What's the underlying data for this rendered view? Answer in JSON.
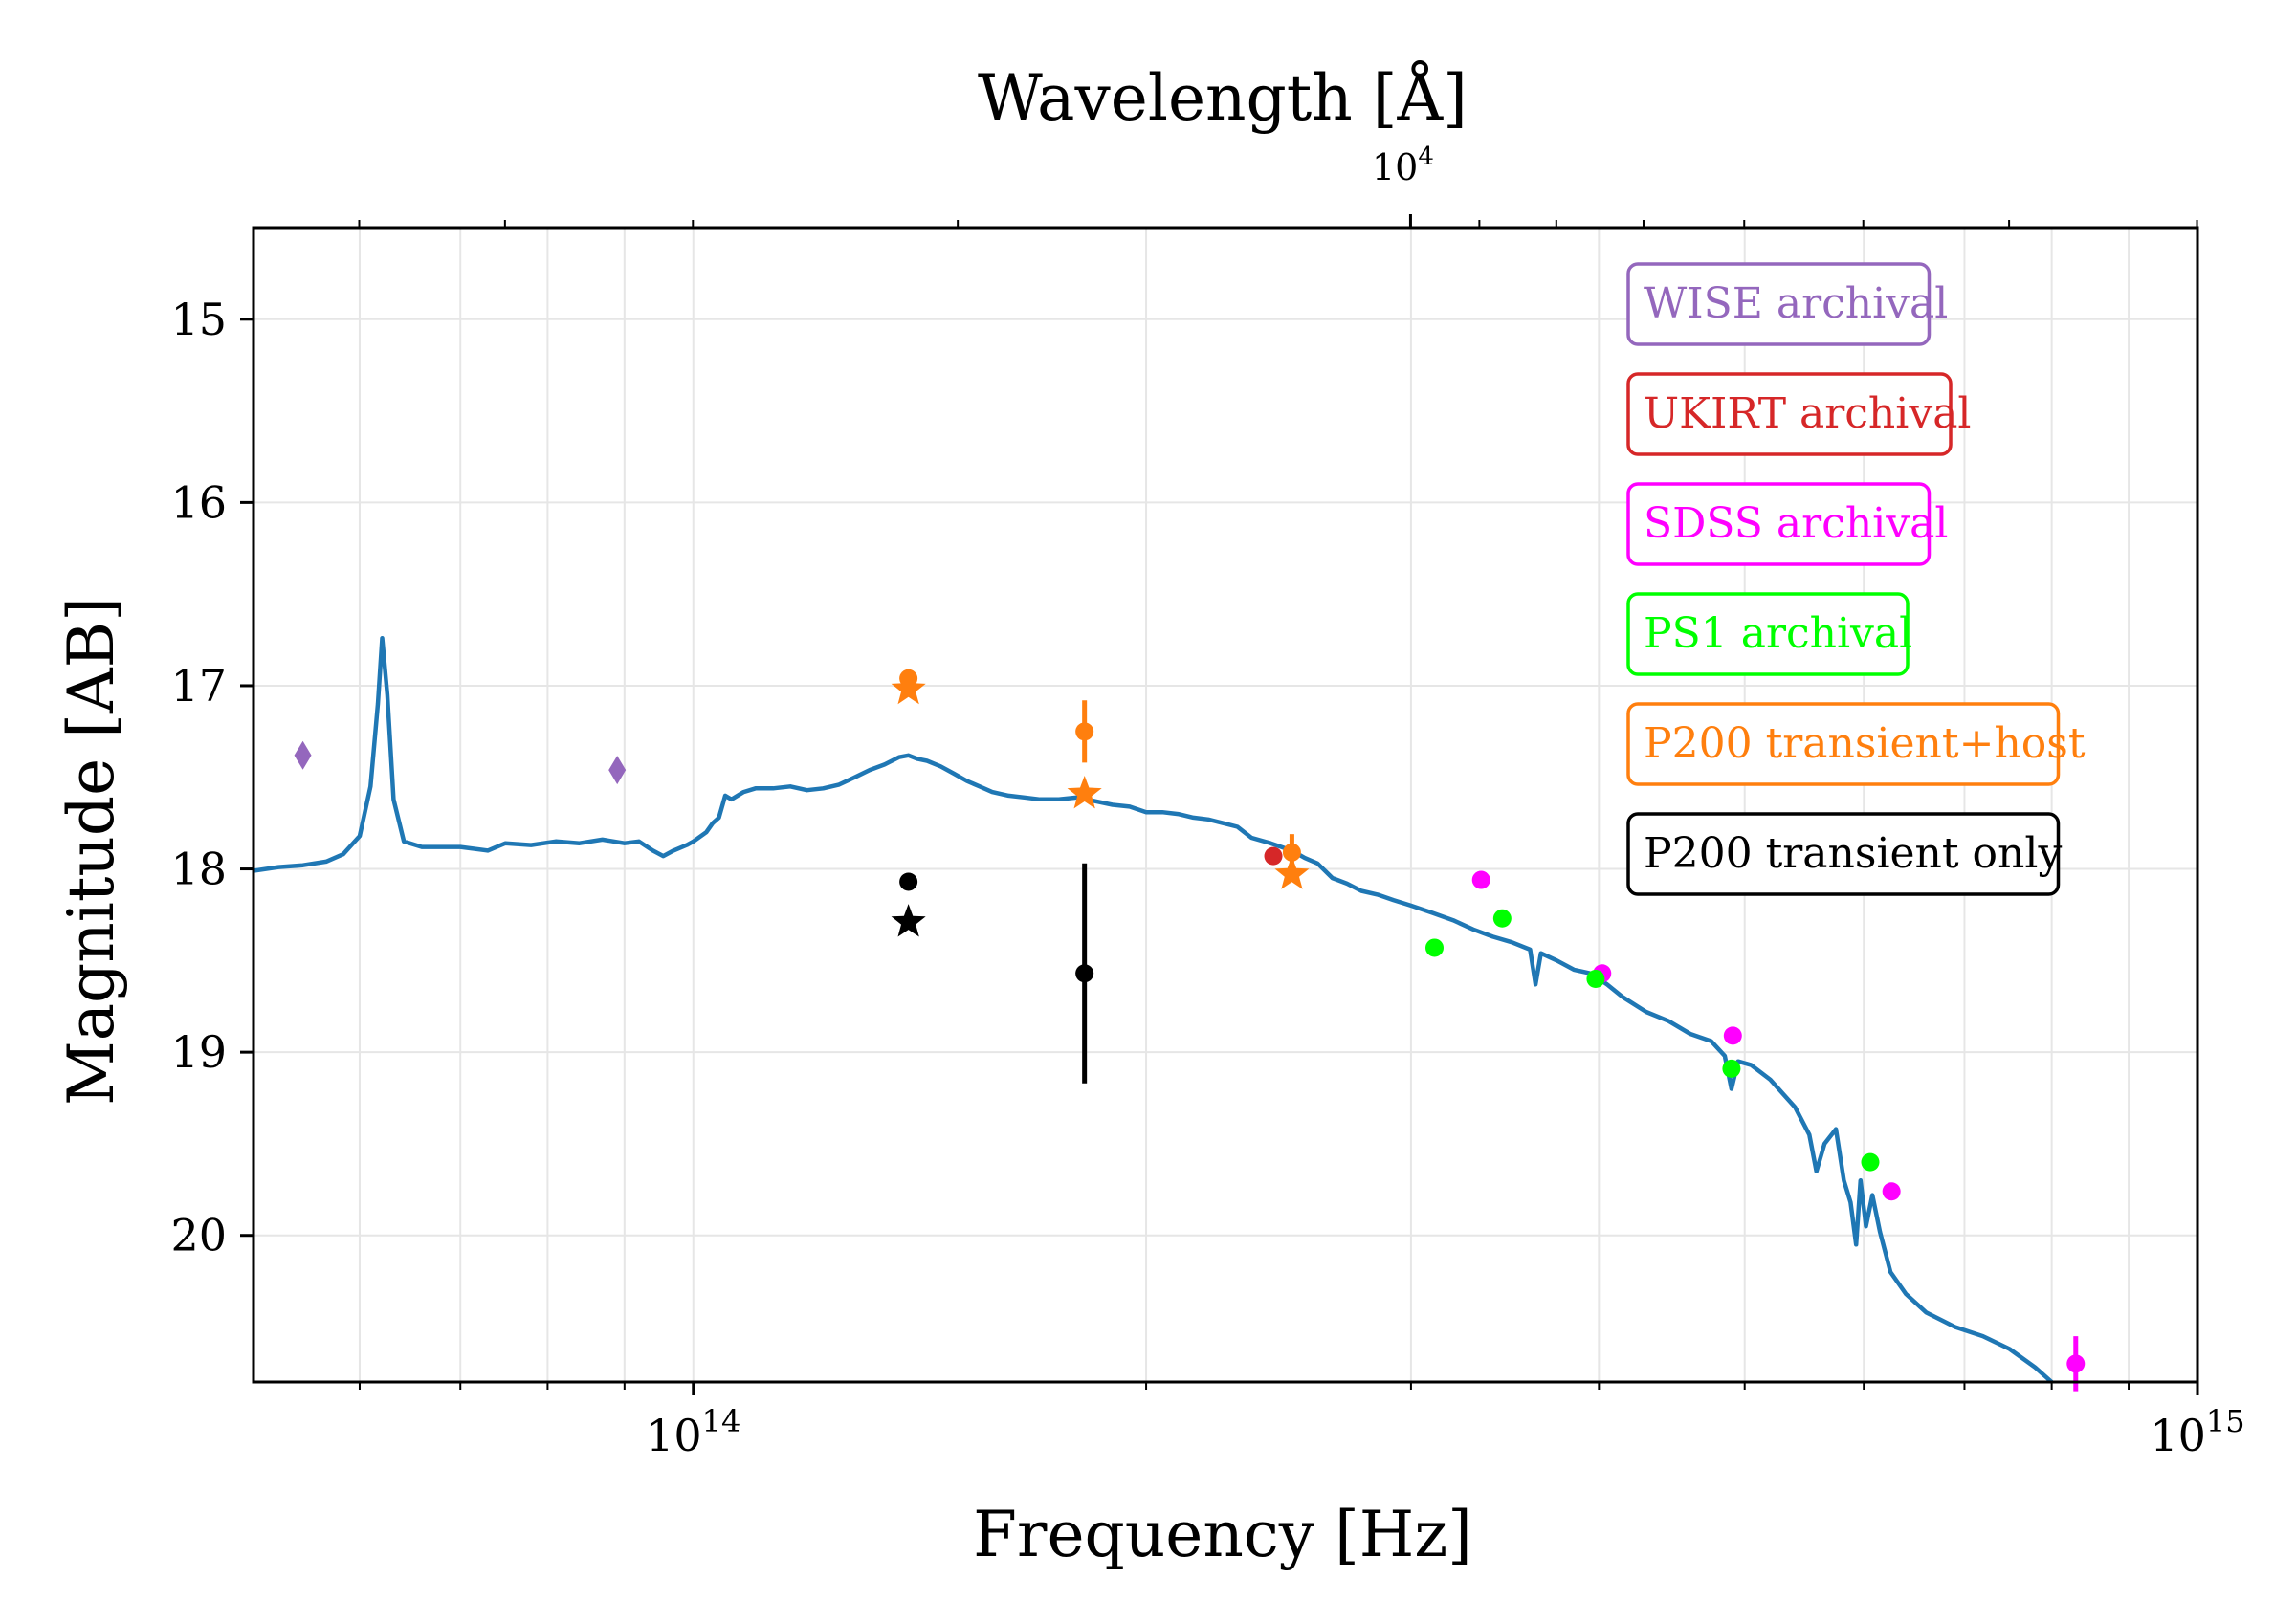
{
  "chart_data": {
    "type": "scatter",
    "xlabel": "Frequency [Hz]",
    "ylabel": "Magnitude [AB]",
    "x2label": "Wavelength [Å]",
    "xscale": "log",
    "xlim": [
      51000000000000.0,
      1000000000000000.0
    ],
    "ylim": [
      20.8,
      14.5
    ],
    "y_inverted": true,
    "grid": true,
    "x_ticks": [
      {
        "value": 100000000000000.0,
        "base": "10",
        "exp": "14"
      },
      {
        "value": 1000000000000000.0,
        "base": "10",
        "exp": "15"
      }
    ],
    "x2_ticks": [
      {
        "value_angstrom": 10000,
        "base": "10",
        "exp": "4"
      }
    ],
    "y_ticks": [
      "15",
      "16",
      "17",
      "18",
      "19",
      "20"
    ],
    "legend_placement": "top-right",
    "series": [
      {
        "name": "WISE archival",
        "color": "#9467bd",
        "marker": "diamond",
        "points": [
          {
            "x": 55000000000000.0,
            "y": 17.38
          },
          {
            "x": 89000000000000.0,
            "y": 17.46
          }
        ]
      },
      {
        "name": "UKIRT archival",
        "color": "#d62728",
        "marker": "circle",
        "points": [
          {
            "x": 243000000000000.0,
            "y": 17.93
          }
        ]
      },
      {
        "name": "SDSS archival",
        "color": "#ff00ff",
        "marker": "circle",
        "points": [
          {
            "x": 334000000000000.0,
            "y": 18.06
          },
          {
            "x": 402000000000000.0,
            "y": 18.57
          },
          {
            "x": 491000000000000.0,
            "y": 18.91
          },
          {
            "x": 626000000000000.0,
            "y": 19.76
          },
          {
            "x": 830000000000000.0,
            "y": 20.7,
            "yerr": 0.15
          }
        ]
      },
      {
        "name": "PS1 archival",
        "color": "#00ff00",
        "marker": "circle",
        "points": [
          {
            "x": 311000000000000.0,
            "y": 18.43
          },
          {
            "x": 345000000000000.0,
            "y": 18.27
          },
          {
            "x": 398000000000000.0,
            "y": 18.6
          },
          {
            "x": 490000000000000.0,
            "y": 19.09
          },
          {
            "x": 606000000000000.0,
            "y": 19.6
          }
        ]
      },
      {
        "name": "P200 transient+host",
        "color": "#ff7f0e",
        "marker": "circle",
        "points": [
          {
            "x": 139000000000000.0,
            "y": 16.96
          },
          {
            "x": 182000000000000.0,
            "y": 17.25,
            "yerr": 0.17
          },
          {
            "x": 250000000000000.0,
            "y": 17.91,
            "yerr": 0.1
          }
        ]
      },
      {
        "name": "",
        "color": "#ff7f0e",
        "marker": "star",
        "points": [
          {
            "x": 139000000000000.0,
            "y": 17.02
          },
          {
            "x": 182000000000000.0,
            "y": 17.59
          },
          {
            "x": 250000000000000.0,
            "y": 18.03
          }
        ]
      },
      {
        "name": "P200 transient only",
        "color": "#000000",
        "marker": "circle",
        "points": [
          {
            "x": 139000000000000.0,
            "y": 18.07
          },
          {
            "x": 182000000000000.0,
            "y": 18.57,
            "yerr": 0.6
          }
        ]
      },
      {
        "name": "",
        "color": "#000000",
        "marker": "star",
        "points": [
          {
            "x": 139000000000000.0,
            "y": 18.29
          }
        ]
      },
      {
        "name": "",
        "type": "line",
        "color": "#1f77b4",
        "points": [
          {
            "x": 51000000000000.0,
            "y": 18.01
          },
          {
            "x": 53000000000000.0,
            "y": 17.99
          },
          {
            "x": 55000000000000.0,
            "y": 17.98
          },
          {
            "x": 57000000000000.0,
            "y": 17.96
          },
          {
            "x": 58500000000000.0,
            "y": 17.92
          },
          {
            "x": 60000000000000.0,
            "y": 17.82
          },
          {
            "x": 61000000000000.0,
            "y": 17.55
          },
          {
            "x": 61700000000000.0,
            "y": 17.1
          },
          {
            "x": 62100000000000.0,
            "y": 16.74
          },
          {
            "x": 62600000000000.0,
            "y": 17.05
          },
          {
            "x": 63200000000000.0,
            "y": 17.62
          },
          {
            "x": 64200000000000.0,
            "y": 17.85
          },
          {
            "x": 66000000000000.0,
            "y": 17.88
          },
          {
            "x": 70000000000000.0,
            "y": 17.88
          },
          {
            "x": 73000000000000.0,
            "y": 17.9
          },
          {
            "x": 75000000000000.0,
            "y": 17.86
          },
          {
            "x": 78000000000000.0,
            "y": 17.87
          },
          {
            "x": 81000000000000.0,
            "y": 17.85
          },
          {
            "x": 84000000000000.0,
            "y": 17.86
          },
          {
            "x": 87000000000000.0,
            "y": 17.84
          },
          {
            "x": 90000000000000.0,
            "y": 17.86
          },
          {
            "x": 92000000000000.0,
            "y": 17.85
          },
          {
            "x": 94000000000000.0,
            "y": 17.9
          },
          {
            "x": 95500000000000.0,
            "y": 17.93
          },
          {
            "x": 97000000000000.0,
            "y": 17.9
          },
          {
            "x": 99000000000000.0,
            "y": 17.87
          },
          {
            "x": 100000000000000.0,
            "y": 17.85
          },
          {
            "x": 102000000000000.0,
            "y": 17.8
          },
          {
            "x": 103000000000000.0,
            "y": 17.75
          },
          {
            "x": 104000000000000.0,
            "y": 17.72
          },
          {
            "x": 105000000000000.0,
            "y": 17.6
          },
          {
            "x": 106000000000000.0,
            "y": 17.62
          },
          {
            "x": 108000000000000.0,
            "y": 17.58
          },
          {
            "x": 110000000000000.0,
            "y": 17.56
          },
          {
            "x": 113000000000000.0,
            "y": 17.56
          },
          {
            "x": 116000000000000.0,
            "y": 17.55
          },
          {
            "x": 119000000000000.0,
            "y": 17.57
          },
          {
            "x": 122000000000000.0,
            "y": 17.56
          },
          {
            "x": 125000000000000.0,
            "y": 17.54
          },
          {
            "x": 128000000000000.0,
            "y": 17.5
          },
          {
            "x": 131000000000000.0,
            "y": 17.46
          },
          {
            "x": 134000000000000.0,
            "y": 17.43
          },
          {
            "x": 137000000000000.0,
            "y": 17.39
          },
          {
            "x": 139000000000000.0,
            "y": 17.38
          },
          {
            "x": 141000000000000.0,
            "y": 17.4
          },
          {
            "x": 143000000000000.0,
            "y": 17.41
          },
          {
            "x": 146000000000000.0,
            "y": 17.44
          },
          {
            "x": 149000000000000.0,
            "y": 17.48
          },
          {
            "x": 152000000000000.0,
            "y": 17.52
          },
          {
            "x": 155000000000000.0,
            "y": 17.55
          },
          {
            "x": 158000000000000.0,
            "y": 17.58
          },
          {
            "x": 162000000000000.0,
            "y": 17.6
          },
          {
            "x": 166000000000000.0,
            "y": 17.61
          },
          {
            "x": 170000000000000.0,
            "y": 17.62
          },
          {
            "x": 175000000000000.0,
            "y": 17.62
          },
          {
            "x": 180000000000000.0,
            "y": 17.61
          },
          {
            "x": 185000000000000.0,
            "y": 17.63
          },
          {
            "x": 190000000000000.0,
            "y": 17.65
          },
          {
            "x": 195000000000000.0,
            "y": 17.66
          },
          {
            "x": 200000000000000.0,
            "y": 17.69
          },
          {
            "x": 205000000000000.0,
            "y": 17.69
          },
          {
            "x": 210000000000000.0,
            "y": 17.7
          },
          {
            "x": 215000000000000.0,
            "y": 17.72
          },
          {
            "x": 220000000000000.0,
            "y": 17.73
          },
          {
            "x": 225000000000000.0,
            "y": 17.75
          },
          {
            "x": 230000000000000.0,
            "y": 17.77
          },
          {
            "x": 235000000000000.0,
            "y": 17.83
          },
          {
            "x": 242000000000000.0,
            "y": 17.86
          },
          {
            "x": 250000000000000.0,
            "y": 17.9
          },
          {
            "x": 255000000000000.0,
            "y": 17.94
          },
          {
            "x": 260000000000000.0,
            "y": 17.97
          },
          {
            "x": 266000000000000.0,
            "y": 18.05
          },
          {
            "x": 272000000000000.0,
            "y": 18.08
          },
          {
            "x": 278000000000000.0,
            "y": 18.12
          },
          {
            "x": 285000000000000.0,
            "y": 18.14
          },
          {
            "x": 292000000000000.0,
            "y": 18.17
          },
          {
            "x": 300000000000000.0,
            "y": 18.2
          },
          {
            "x": 310000000000000.0,
            "y": 18.24
          },
          {
            "x": 320000000000000.0,
            "y": 18.28
          },
          {
            "x": 330000000000000.0,
            "y": 18.33
          },
          {
            "x": 340000000000000.0,
            "y": 18.37
          },
          {
            "x": 350000000000000.0,
            "y": 18.4
          },
          {
            "x": 360000000000000.0,
            "y": 18.44
          },
          {
            "x": 363000000000000.0,
            "y": 18.63
          },
          {
            "x": 366000000000000.0,
            "y": 18.46
          },
          {
            "x": 375000000000000.0,
            "y": 18.5
          },
          {
            "x": 385000000000000.0,
            "y": 18.55
          },
          {
            "x": 395000000000000.0,
            "y": 18.57
          },
          {
            "x": 405000000000000.0,
            "y": 18.63
          },
          {
            "x": 415000000000000.0,
            "y": 18.7
          },
          {
            "x": 430000000000000.0,
            "y": 18.78
          },
          {
            "x": 445000000000000.0,
            "y": 18.83
          },
          {
            "x": 460000000000000.0,
            "y": 18.9
          },
          {
            "x": 475000000000000.0,
            "y": 18.94
          },
          {
            "x": 485000000000000.0,
            "y": 19.02
          },
          {
            "x": 490000000000000.0,
            "y": 19.2
          },
          {
            "x": 495000000000000.0,
            "y": 19.05
          },
          {
            "x": 505000000000000.0,
            "y": 19.07
          },
          {
            "x": 520000000000000.0,
            "y": 19.15
          },
          {
            "x": 540000000000000.0,
            "y": 19.3
          },
          {
            "x": 552000000000000.0,
            "y": 19.45
          },
          {
            "x": 558000000000000.0,
            "y": 19.65
          },
          {
            "x": 565000000000000.0,
            "y": 19.5
          },
          {
            "x": 575000000000000.0,
            "y": 19.42
          },
          {
            "x": 582000000000000.0,
            "y": 19.7
          },
          {
            "x": 588000000000000.0,
            "y": 19.82
          },
          {
            "x": 593000000000000.0,
            "y": 20.05
          },
          {
            "x": 597000000000000.0,
            "y": 19.7
          },
          {
            "x": 602000000000000.0,
            "y": 19.95
          },
          {
            "x": 608000000000000.0,
            "y": 19.78
          },
          {
            "x": 615000000000000.0,
            "y": 19.98
          },
          {
            "x": 625000000000000.0,
            "y": 20.2
          },
          {
            "x": 640000000000000.0,
            "y": 20.32
          },
          {
            "x": 660000000000000.0,
            "y": 20.42
          },
          {
            "x": 690000000000000.0,
            "y": 20.5
          },
          {
            "x": 720000000000000.0,
            "y": 20.55
          },
          {
            "x": 750000000000000.0,
            "y": 20.62
          },
          {
            "x": 780000000000000.0,
            "y": 20.72
          },
          {
            "x": 800000000000000.0,
            "y": 20.8
          }
        ]
      }
    ]
  }
}
